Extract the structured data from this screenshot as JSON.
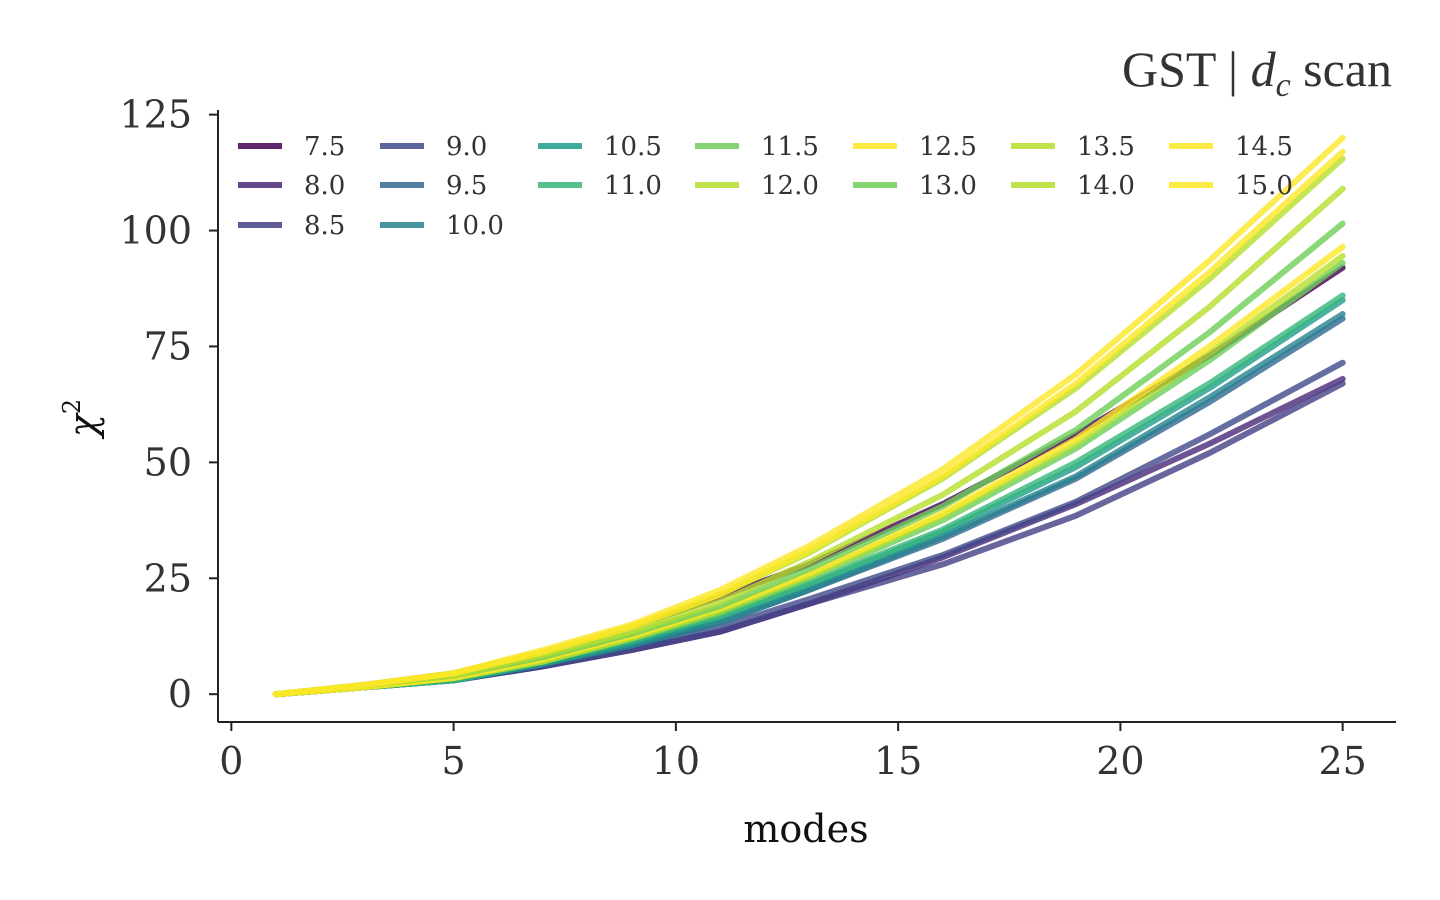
{
  "chart_data": {
    "type": "line",
    "title_parts": [
      "GST | ",
      "d",
      "c",
      " scan"
    ],
    "xlabel": "modes",
    "ylabel_symbol": "χ",
    "ylabel_exponent": "2",
    "xlim": [
      -0.3,
      26.2
    ],
    "ylim": [
      -6,
      126
    ],
    "xticks": [
      0,
      5,
      10,
      15,
      20,
      25
    ],
    "yticks": [
      0,
      25,
      50,
      75,
      100,
      125
    ],
    "grid": false,
    "legend_position": "top-left",
    "x": [
      1,
      3,
      5,
      7,
      9,
      11,
      13,
      16,
      19,
      22,
      25
    ],
    "series": [
      {
        "name": "7.5",
        "color": "#440154",
        "values": [
          0,
          2.0,
          4.5,
          9.0,
          14.5,
          21.0,
          28.0,
          41.0,
          56.0,
          73.0,
          92.0
        ]
      },
      {
        "name": "8.0",
        "color": "#482878",
        "values": [
          0,
          1.5,
          3.0,
          6.0,
          9.5,
          13.5,
          19.5,
          29.5,
          41.0,
          54.0,
          68.0
        ]
      },
      {
        "name": "8.5",
        "color": "#433e85",
        "values": [
          0,
          1.5,
          3.0,
          6.0,
          9.5,
          13.5,
          19.5,
          28.0,
          38.5,
          52.0,
          67.0
        ]
      },
      {
        "name": "9.0",
        "color": "#3e4989",
        "values": [
          0,
          1.5,
          3.0,
          6.0,
          10.0,
          14.5,
          20.5,
          30.0,
          41.5,
          56.0,
          71.5
        ]
      },
      {
        "name": "9.5",
        "color": "#31688e",
        "values": [
          0,
          1.5,
          3.0,
          6.5,
          10.5,
          15.5,
          22.5,
          33.5,
          46.5,
          63.0,
          81.0
        ]
      },
      {
        "name": "10.0",
        "color": "#26828e",
        "values": [
          0,
          1.5,
          3.0,
          6.5,
          10.5,
          15.5,
          22.5,
          34.0,
          47.0,
          64.0,
          82.0
        ]
      },
      {
        "name": "10.5",
        "color": "#1f9e89",
        "values": [
          0,
          1.5,
          3.0,
          6.5,
          11.0,
          16.5,
          23.5,
          35.0,
          49.0,
          66.0,
          85.0
        ]
      },
      {
        "name": "11.0",
        "color": "#35b779",
        "values": [
          0,
          1.5,
          3.0,
          7.0,
          11.5,
          17.0,
          24.0,
          35.5,
          50.0,
          67.0,
          86.0
        ]
      },
      {
        "name": "11.5",
        "color": "#6ece58",
        "values": [
          0,
          1.5,
          3.5,
          7.0,
          12.0,
          17.5,
          25.0,
          37.5,
          53.0,
          72.0,
          93.0
        ]
      },
      {
        "name": "12.0",
        "color": "#b5de2b",
        "values": [
          0,
          1.5,
          3.5,
          7.0,
          12.0,
          18.0,
          25.5,
          38.5,
          54.0,
          73.5,
          94.5
        ]
      },
      {
        "name": "12.5",
        "color": "#fde725",
        "values": [
          0,
          1.5,
          3.5,
          7.5,
          12.5,
          18.5,
          26.0,
          39.0,
          55.0,
          75.0,
          96.5
        ]
      },
      {
        "name": "13.0",
        "color": "#6ece58",
        "values": [
          0,
          2.0,
          4.0,
          8.0,
          13.0,
          19.0,
          27.0,
          40.5,
          57.0,
          78.0,
          101.5
        ]
      },
      {
        "name": "13.5",
        "color": "#b5de2b",
        "values": [
          0,
          2.0,
          4.0,
          8.5,
          13.5,
          20.0,
          28.5,
          43.0,
          61.0,
          83.5,
          109.0
        ]
      },
      {
        "name": "14.0",
        "color": "#b5de2b",
        "values": [
          0,
          2.0,
          4.5,
          9.0,
          14.5,
          21.5,
          30.5,
          46.5,
          66.0,
          89.5,
          115.5
        ]
      },
      {
        "name": "14.5",
        "color": "#fde725",
        "values": [
          0,
          2.0,
          4.5,
          9.0,
          14.5,
          21.5,
          31.0,
          47.0,
          67.0,
          91.0,
          117.0
        ]
      },
      {
        "name": "15.0",
        "color": "#fde725",
        "values": [
          0,
          2.0,
          4.5,
          9.5,
          15.0,
          22.5,
          32.0,
          48.5,
          69.0,
          93.5,
          120.0
        ]
      }
    ]
  }
}
